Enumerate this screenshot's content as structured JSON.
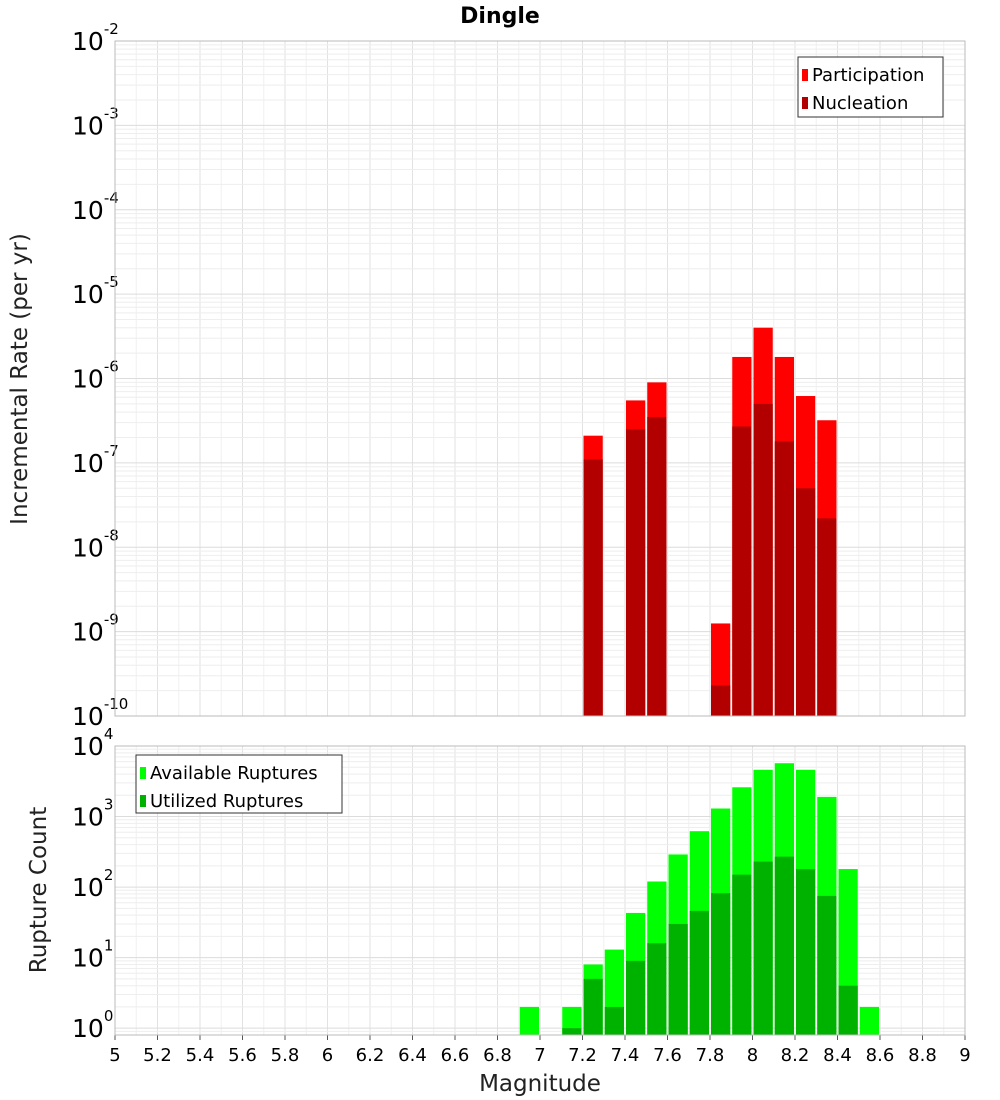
{
  "chart_data": [
    {
      "type": "bar",
      "title": "Dingle",
      "ylabel": "Incremental Rate (per yr)",
      "xlabel": "",
      "x_range": [
        5,
        9
      ],
      "y_scale": "log",
      "y_range": [
        1e-10,
        0.01
      ],
      "y_tick_exponents": [
        -2,
        -3,
        -4,
        -5,
        -6,
        -7,
        -8,
        -9,
        -10
      ],
      "grid": true,
      "legend_position": "top-right",
      "bin_width": 0.1,
      "series": [
        {
          "name": "Participation",
          "color": "#ff0000",
          "x": [
            7.25,
            7.45,
            7.55,
            7.85,
            7.95,
            8.05,
            8.15,
            8.25,
            8.35
          ],
          "values": [
            2.1e-07,
            5.5e-07,
            9e-07,
            1.25e-09,
            1.8e-06,
            4e-06,
            1.8e-06,
            6.2e-07,
            3.2e-07
          ]
        },
        {
          "name": "Nucleation",
          "color": "#b20000",
          "x": [
            7.25,
            7.45,
            7.55,
            7.85,
            7.95,
            8.05,
            8.15,
            8.25,
            8.35
          ],
          "values": [
            1.1e-07,
            2.5e-07,
            3.5e-07,
            2.3e-10,
            2.7e-07,
            5e-07,
            1.8e-07,
            5e-08,
            2.2e-08
          ]
        }
      ]
    },
    {
      "type": "bar",
      "title": "",
      "ylabel": "Rupture Count",
      "xlabel": "Magnitude",
      "x_range": [
        5,
        9
      ],
      "x_ticks": [
        "5",
        "5.2",
        "5.4",
        "5.6",
        "5.8",
        "6",
        "6.2",
        "6.4",
        "6.6",
        "6.8",
        "7",
        "7.2",
        "7.4",
        "7.6",
        "7.8",
        "8",
        "8.2",
        "8.4",
        "8.6",
        "8.8",
        "9"
      ],
      "y_scale": "log",
      "y_range": [
        0.8,
        10000
      ],
      "y_tick_exponents": [
        4,
        3,
        2,
        1,
        0
      ],
      "grid": true,
      "legend_position": "top-left",
      "bin_width": 0.1,
      "series": [
        {
          "name": "Available Ruptures",
          "color": "#00ff00",
          "x": [
            6.95,
            7.15,
            7.25,
            7.35,
            7.45,
            7.55,
            7.65,
            7.75,
            7.85,
            7.95,
            8.05,
            8.15,
            8.25,
            8.35,
            8.45,
            8.55
          ],
          "values": [
            2,
            2,
            8,
            13,
            43,
            120,
            290,
            620,
            1300,
            2600,
            4600,
            5700,
            4600,
            1900,
            180,
            2
          ]
        },
        {
          "name": "Utilized Ruptures",
          "color": "#00b200",
          "x": [
            7.15,
            7.25,
            7.35,
            7.45,
            7.55,
            7.65,
            7.75,
            7.85,
            7.95,
            8.05,
            8.15,
            8.25,
            8.35,
            8.45
          ],
          "values": [
            1,
            5,
            2,
            9,
            16,
            30,
            46,
            82,
            150,
            230,
            270,
            180,
            75,
            4
          ]
        }
      ]
    }
  ]
}
